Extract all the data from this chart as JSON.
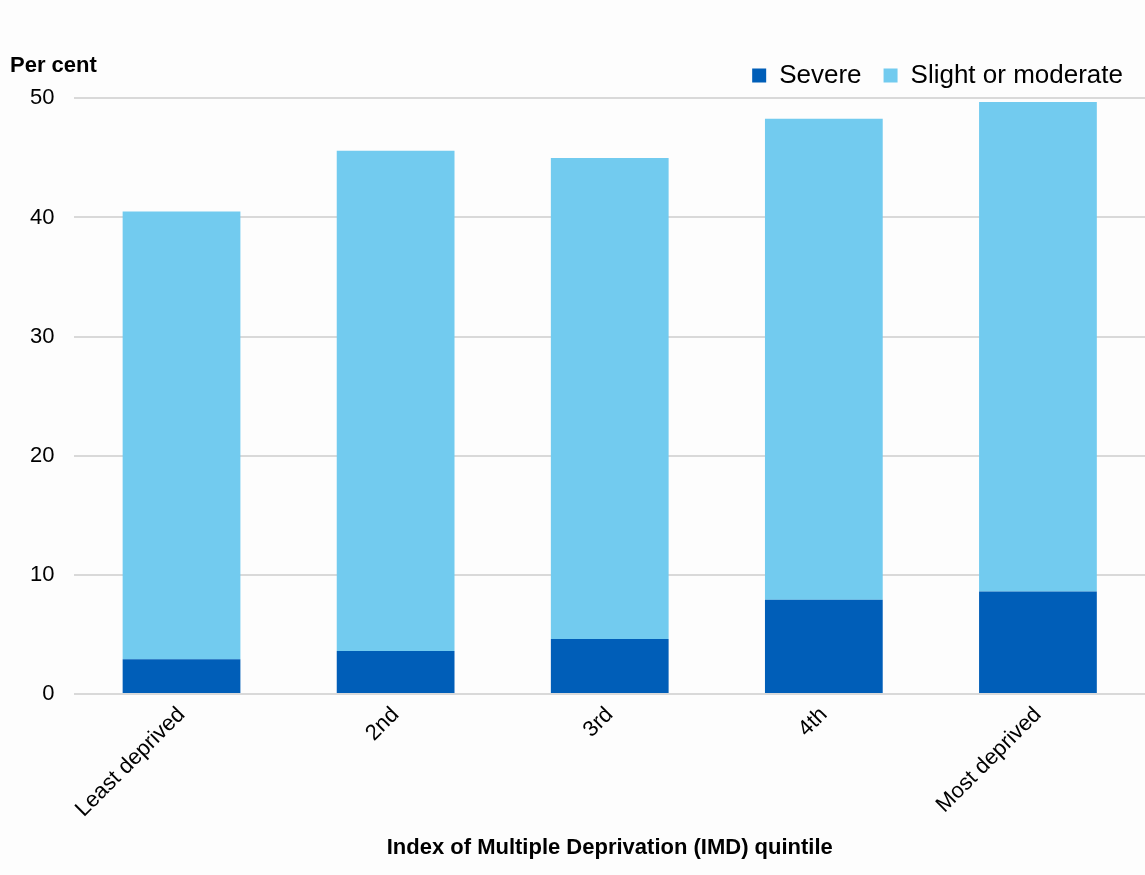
{
  "chart_data": {
    "type": "bar",
    "stacked": true,
    "xlabel": "Index of Multiple Deprivation (IMD) quintile",
    "ylabel": "Per cent",
    "categories": [
      "Least deprived",
      "2nd",
      "3rd",
      "4th",
      "Most deprived"
    ],
    "series": [
      {
        "name": "Severe",
        "color": "#005eb8",
        "values": [
          2.9,
          3.6,
          4.6,
          7.9,
          8.6
        ]
      },
      {
        "name": "Slight or moderate",
        "color": "#72cbef",
        "values": [
          37.6,
          42.0,
          40.4,
          40.4,
          41.1
        ]
      }
    ],
    "ylim": [
      0,
      50
    ],
    "yticks": [
      0,
      10,
      20,
      30,
      40,
      50
    ],
    "grid": "y",
    "legend": "top right"
  }
}
